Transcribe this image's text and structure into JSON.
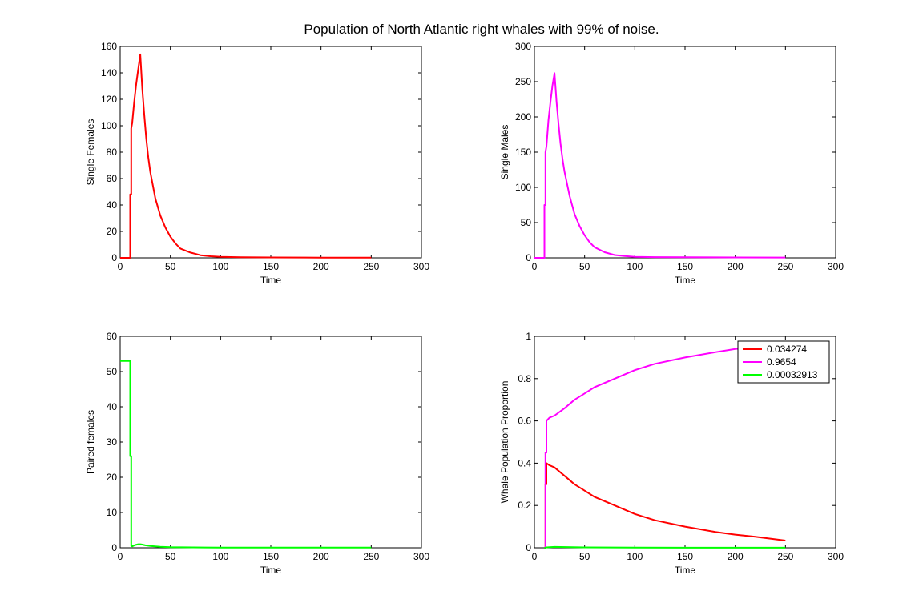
{
  "figure": {
    "title": "Population of North Atlantic right whales with 99% of noise."
  },
  "colors": {
    "red": "#ff0000",
    "magenta": "#ff00ff",
    "green": "#00ff00",
    "axis": "#000000"
  },
  "chart_data": [
    {
      "type": "line",
      "xlabel": "Time",
      "ylabel": "Single Females",
      "xlim": [
        0,
        300
      ],
      "ylim": [
        0,
        160
      ],
      "xticks": [
        "0",
        "50",
        "100",
        "150",
        "200",
        "250",
        "300"
      ],
      "yticks": [
        "0",
        "20",
        "40",
        "60",
        "80",
        "100",
        "120",
        "140",
        "160"
      ],
      "grid": false,
      "series": [
        {
          "color": "#ff0000",
          "x": [
            0,
            10,
            10,
            11,
            11,
            12,
            14,
            16,
            18,
            20,
            22,
            24,
            26,
            28,
            30,
            35,
            40,
            45,
            50,
            55,
            60,
            70,
            80,
            90,
            100,
            120,
            150,
            200,
            250
          ],
          "y": [
            0,
            0,
            48,
            48,
            98,
            102,
            118,
            132,
            143,
            154,
            128,
            108,
            90,
            76,
            65,
            45,
            32,
            23,
            16,
            11,
            7,
            4,
            2,
            1.2,
            0.7,
            0.4,
            0.3,
            0.2,
            0.2
          ]
        }
      ]
    },
    {
      "type": "line",
      "xlabel": "Time",
      "ylabel": "Single Males",
      "xlim": [
        0,
        300
      ],
      "ylim": [
        0,
        300
      ],
      "xticks": [
        "0",
        "50",
        "100",
        "150",
        "200",
        "250",
        "300"
      ],
      "yticks": [
        "0",
        "50",
        "100",
        "150",
        "200",
        "250",
        "300"
      ],
      "grid": false,
      "series": [
        {
          "color": "#ff00ff",
          "x": [
            0,
            10,
            10,
            11,
            11,
            12,
            14,
            16,
            18,
            20,
            22,
            24,
            26,
            28,
            30,
            35,
            40,
            45,
            50,
            55,
            60,
            70,
            80,
            90,
            100,
            120,
            150,
            200,
            250
          ],
          "y": [
            0,
            0,
            75,
            75,
            150,
            158,
            195,
            222,
            245,
            262,
            222,
            190,
            162,
            140,
            122,
            88,
            62,
            45,
            32,
            22,
            15,
            8,
            4,
            2.5,
            1.5,
            1,
            0.8,
            0.6,
            0.5
          ]
        }
      ]
    },
    {
      "type": "line",
      "xlabel": "Time",
      "ylabel": "Paired females",
      "xlim": [
        0,
        300
      ],
      "ylim": [
        0,
        60
      ],
      "xticks": [
        "0",
        "50",
        "100",
        "150",
        "200",
        "250",
        "300"
      ],
      "yticks": [
        "0",
        "10",
        "20",
        "30",
        "40",
        "50",
        "60"
      ],
      "grid": false,
      "series": [
        {
          "color": "#00ff00",
          "x": [
            0,
            10,
            10,
            11,
            11,
            12,
            15,
            18,
            20,
            22,
            25,
            30,
            40,
            50,
            100,
            150,
            200,
            250
          ],
          "y": [
            53,
            53,
            26,
            26,
            0.5,
            0.4,
            0.8,
            1.0,
            1.0,
            0.9,
            0.7,
            0.5,
            0.3,
            0.15,
            0.05,
            0.05,
            0.05,
            0.05
          ]
        }
      ]
    },
    {
      "type": "line",
      "xlabel": "Time",
      "ylabel": "Whale Population Proportion",
      "xlim": [
        0,
        300
      ],
      "ylim": [
        0,
        1
      ],
      "xticks": [
        "0",
        "50",
        "100",
        "150",
        "200",
        "250",
        "300"
      ],
      "yticks": [
        "0",
        "0.2",
        "0.4",
        "0.6",
        "0.8",
        "1"
      ],
      "grid": false,
      "legend": "top-right",
      "series": [
        {
          "name": "0.034274",
          "color": "#ff0000",
          "x": [
            10,
            11,
            11,
            12,
            12,
            15,
            20,
            30,
            40,
            50,
            60,
            80,
            100,
            120,
            150,
            180,
            200,
            220,
            250
          ],
          "y": [
            0,
            0,
            0.3,
            0.3,
            0.4,
            0.39,
            0.38,
            0.34,
            0.3,
            0.27,
            0.24,
            0.2,
            0.16,
            0.13,
            0.1,
            0.075,
            0.062,
            0.052,
            0.034
          ]
        },
        {
          "name": "0.9654",
          "color": "#ff00ff",
          "x": [
            10,
            11,
            11,
            12,
            12,
            15,
            20,
            30,
            40,
            50,
            60,
            80,
            100,
            120,
            150,
            180,
            200,
            220,
            250
          ],
          "y": [
            0,
            0,
            0.45,
            0.45,
            0.6,
            0.615,
            0.625,
            0.66,
            0.7,
            0.73,
            0.76,
            0.8,
            0.84,
            0.87,
            0.9,
            0.925,
            0.94,
            0.948,
            0.9654
          ]
        },
        {
          "name": "0.00032913",
          "color": "#00ff00",
          "x": [
            10,
            11,
            12,
            20,
            50,
            100,
            150,
            200,
            250
          ],
          "y": [
            0,
            0,
            0.002,
            0.004,
            0.002,
            0.001,
            0.0005,
            0.0004,
            0.0003
          ]
        }
      ]
    }
  ]
}
